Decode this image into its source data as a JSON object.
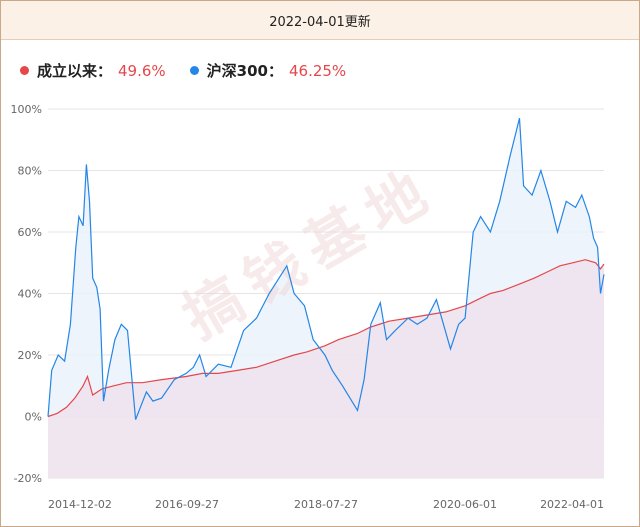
{
  "header": {
    "title": "2022-04-01更新"
  },
  "legend": [
    {
      "label": "成立以来：",
      "value": "49.6%",
      "color": "#e5474b"
    },
    {
      "label": "沪深300：",
      "value": "46.25%",
      "color": "#2486e6"
    }
  ],
  "watermark": "搞钱基地",
  "chart_data": {
    "type": "line",
    "ylim": [
      -20,
      100
    ],
    "y_ticks": [
      "100%",
      "80%",
      "60%",
      "40%",
      "20%",
      "0%",
      "-20%"
    ],
    "x_ticks": [
      "2014-12-02",
      "2016-09-27",
      "2018-07-27",
      "2020-06-01",
      "2022-04-01"
    ],
    "x_range": [
      "2014-12-02",
      "2022-04-01"
    ],
    "series": [
      {
        "name": "成立以来",
        "color": "#e5474b",
        "fill": "#ede3ee",
        "points": [
          [
            "2014-12-02",
            0
          ],
          [
            "2015-01-15",
            1
          ],
          [
            "2015-03-01",
            3
          ],
          [
            "2015-04-10",
            6
          ],
          [
            "2015-05-20",
            10
          ],
          [
            "2015-06-10",
            13
          ],
          [
            "2015-07-05",
            7
          ],
          [
            "2015-08-20",
            9
          ],
          [
            "2015-10-15",
            10
          ],
          [
            "2015-12-15",
            11
          ],
          [
            "2016-03-01",
            11
          ],
          [
            "2016-06-01",
            12
          ],
          [
            "2016-09-27",
            13
          ],
          [
            "2016-12-15",
            14
          ],
          [
            "2017-03-01",
            14
          ],
          [
            "2017-06-01",
            15
          ],
          [
            "2017-09-01",
            16
          ],
          [
            "2017-12-01",
            18
          ],
          [
            "2018-03-01",
            20
          ],
          [
            "2018-05-01",
            21
          ],
          [
            "2018-07-27",
            23
          ],
          [
            "2018-10-01",
            25
          ],
          [
            "2018-12-31",
            27
          ],
          [
            "2019-03-01",
            29
          ],
          [
            "2019-06-01",
            31
          ],
          [
            "2019-09-01",
            32
          ],
          [
            "2019-12-01",
            33
          ],
          [
            "2020-03-01",
            34
          ],
          [
            "2020-06-01",
            36
          ],
          [
            "2020-08-01",
            38
          ],
          [
            "2020-10-01",
            40
          ],
          [
            "2020-12-01",
            41
          ],
          [
            "2021-02-15",
            43
          ],
          [
            "2021-05-01",
            45
          ],
          [
            "2021-07-01",
            47
          ],
          [
            "2021-09-01",
            49
          ],
          [
            "2021-11-01",
            50
          ],
          [
            "2022-01-01",
            51
          ],
          [
            "2022-02-20",
            50
          ],
          [
            "2022-03-15",
            48
          ],
          [
            "2022-04-01",
            49.6
          ]
        ]
      },
      {
        "name": "沪深300",
        "color": "#2486e6",
        "fill": "#e8f1fb",
        "points": [
          [
            "2014-12-02",
            0
          ],
          [
            "2014-12-20",
            15
          ],
          [
            "2015-01-20",
            20
          ],
          [
            "2015-02-20",
            18
          ],
          [
            "2015-03-20",
            30
          ],
          [
            "2015-04-15",
            55
          ],
          [
            "2015-04-30",
            65
          ],
          [
            "2015-05-20",
            62
          ],
          [
            "2015-06-05",
            82
          ],
          [
            "2015-06-20",
            70
          ],
          [
            "2015-07-05",
            45
          ],
          [
            "2015-07-25",
            42
          ],
          [
            "2015-08-10",
            35
          ],
          [
            "2015-08-26",
            5
          ],
          [
            "2015-09-20",
            15
          ],
          [
            "2015-10-20",
            25
          ],
          [
            "2015-11-20",
            30
          ],
          [
            "2015-12-20",
            28
          ],
          [
            "2016-01-28",
            -1
          ],
          [
            "2016-02-20",
            3
          ],
          [
            "2016-03-20",
            8
          ],
          [
            "2016-04-20",
            5
          ],
          [
            "2016-06-01",
            6
          ],
          [
            "2016-08-01",
            12
          ],
          [
            "2016-09-27",
            14
          ],
          [
            "2016-11-01",
            16
          ],
          [
            "2016-12-01",
            20
          ],
          [
            "2017-01-01",
            13
          ],
          [
            "2017-03-01",
            17
          ],
          [
            "2017-05-01",
            16
          ],
          [
            "2017-07-01",
            28
          ],
          [
            "2017-09-01",
            32
          ],
          [
            "2017-11-01",
            40
          ],
          [
            "2018-01-25",
            49
          ],
          [
            "2018-03-01",
            40
          ],
          [
            "2018-04-20",
            36
          ],
          [
            "2018-06-01",
            25
          ],
          [
            "2018-07-27",
            20
          ],
          [
            "2018-09-01",
            15
          ],
          [
            "2018-10-20",
            10
          ],
          [
            "2018-12-31",
            2
          ],
          [
            "2019-02-01",
            12
          ],
          [
            "2019-03-05",
            30
          ],
          [
            "2019-04-20",
            37
          ],
          [
            "2019-05-20",
            25
          ],
          [
            "2019-07-01",
            28
          ],
          [
            "2019-09-01",
            32
          ],
          [
            "2019-10-15",
            30
          ],
          [
            "2019-12-01",
            32
          ],
          [
            "2020-01-15",
            38
          ],
          [
            "2020-03-23",
            22
          ],
          [
            "2020-05-01",
            30
          ],
          [
            "2020-06-01",
            32
          ],
          [
            "2020-07-10",
            60
          ],
          [
            "2020-08-15",
            65
          ],
          [
            "2020-10-01",
            60
          ],
          [
            "2020-11-15",
            70
          ],
          [
            "2021-01-05",
            85
          ],
          [
            "2021-02-18",
            97
          ],
          [
            "2021-03-10",
            75
          ],
          [
            "2021-04-20",
            72
          ],
          [
            "2021-06-01",
            80
          ],
          [
            "2021-07-15",
            70
          ],
          [
            "2021-08-20",
            60
          ],
          [
            "2021-10-01",
            70
          ],
          [
            "2021-11-15",
            68
          ],
          [
            "2021-12-15",
            72
          ],
          [
            "2022-01-20",
            65
          ],
          [
            "2022-02-10",
            58
          ],
          [
            "2022-03-01",
            55
          ],
          [
            "2022-03-15",
            40
          ],
          [
            "2022-04-01",
            46.25
          ]
        ]
      }
    ]
  }
}
